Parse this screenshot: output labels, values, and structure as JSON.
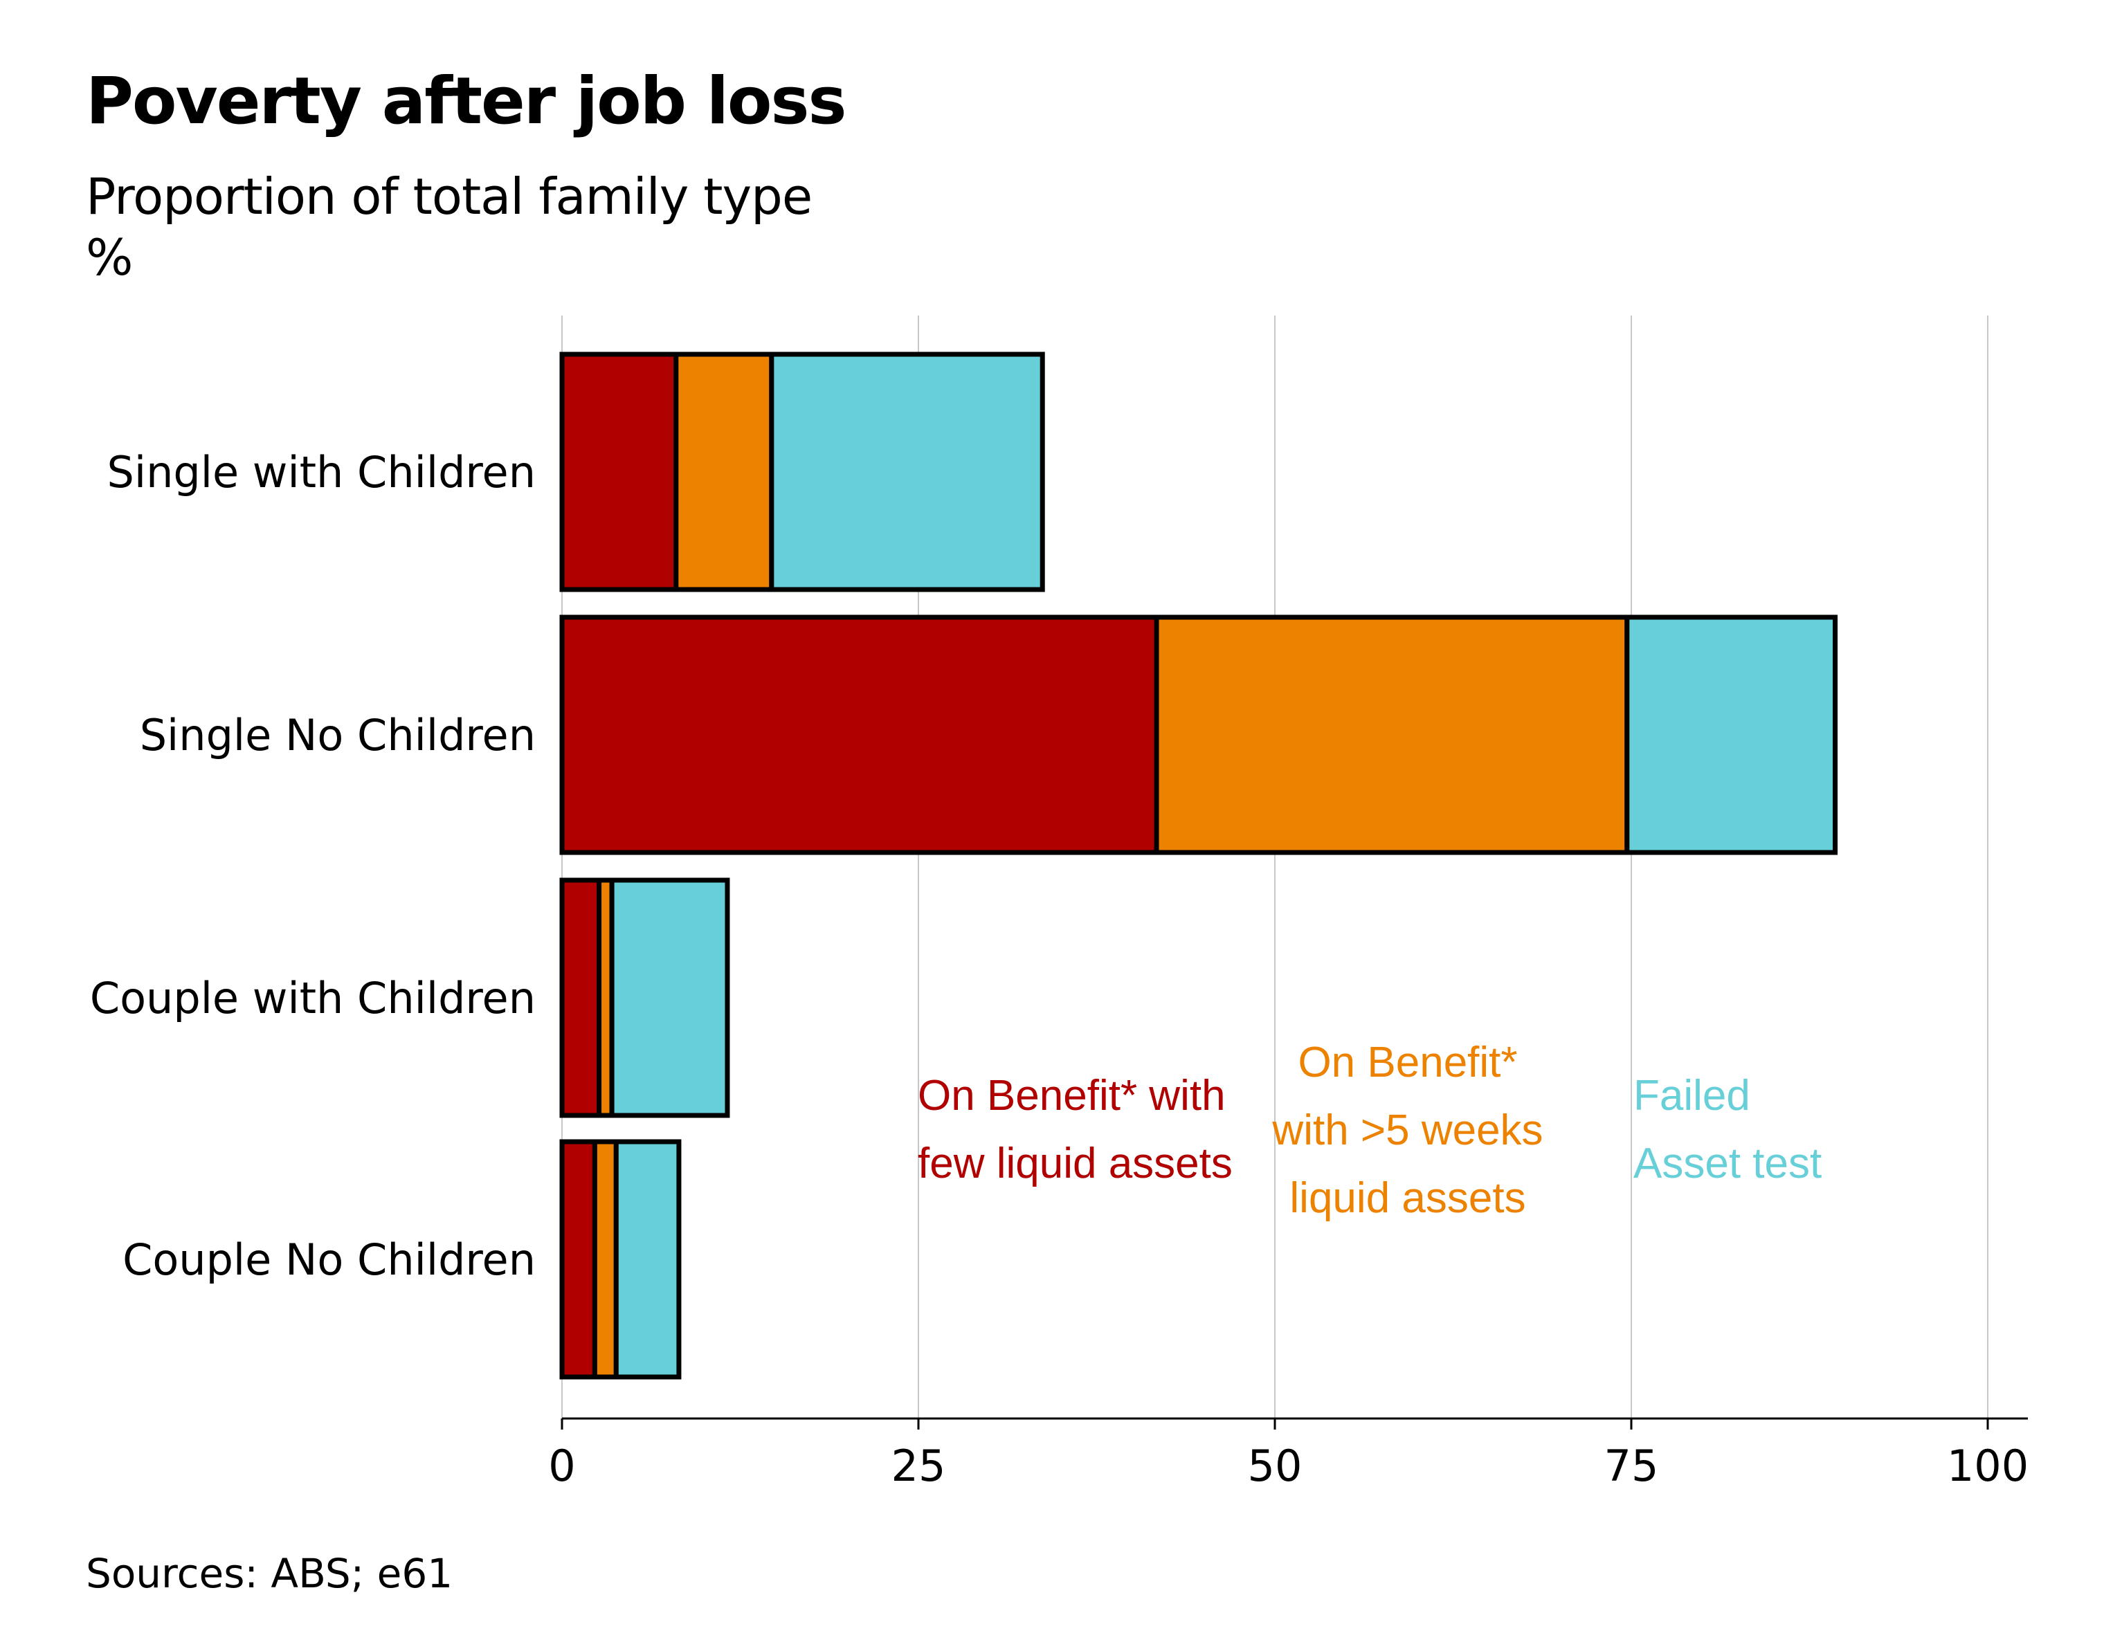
{
  "chart_data": {
    "type": "bar",
    "orientation": "horizontal",
    "stacked": true,
    "title": "Poverty after job loss",
    "subtitle": "Proportion of total family type",
    "unit": "%",
    "source": "Sources: ABS; e61",
    "categories": [
      "Single with Children",
      "Single No Children",
      "Couple with Children",
      "Couple No Children"
    ],
    "series": [
      {
        "key": "few_liquid",
        "color": "#b00000",
        "label_lines": [
          "On Benefit* with",
          "few liquid assets"
        ],
        "values": [
          8.0,
          41.7,
          2.6,
          2.3
        ]
      },
      {
        "key": "over_5_weeks",
        "color": "#ec8200",
        "label_lines": [
          "On Benefit*",
          "with >5 weeks",
          "liquid assets"
        ],
        "values": [
          6.7,
          33.0,
          0.9,
          1.5
        ]
      },
      {
        "key": "failed_asset",
        "color": "#66cfd8",
        "label_lines": [
          "Failed",
          "Asset test"
        ],
        "values": [
          19.0,
          14.6,
          8.1,
          4.4
        ]
      }
    ],
    "xlim": [
      0,
      103
    ],
    "xticks": [
      0,
      25,
      50,
      75,
      100
    ],
    "grid": true,
    "legend": "inline labels"
  }
}
